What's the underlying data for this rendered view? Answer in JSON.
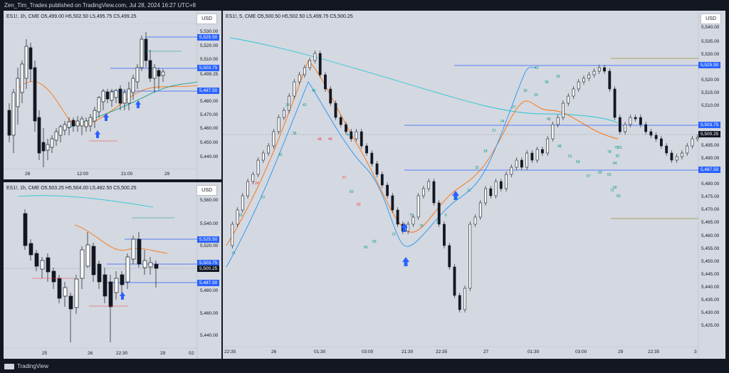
{
  "header": {
    "published": "Zen_Tim_Trades published on TradingView.com, Jul 28, 2024 16:27 UTC+8"
  },
  "footer": {
    "brand": "TradingView"
  },
  "colors": {
    "up": "#ffffff",
    "down": "#131722",
    "line_blue": "#2962ff",
    "ema_fast": "#ff6d00",
    "ema_mid": "#2196f3",
    "ema_slow": "#26c6da",
    "label_green": "#089981",
    "label_red": "#f23645"
  },
  "panel_tl": {
    "ohlc": "ES1!, 1h, CME  O5,499.00  H5,502.50  L5,495.75  C5,499.25",
    "currency": "USD",
    "y_ticks": [
      "5,530.00",
      "5,520.00",
      "5,510.00",
      "5,480.00",
      "5,470.00",
      "5,460.00",
      "5,450.00",
      "5,440.00"
    ],
    "x_ticks": [
      "26",
      "12:00",
      "21:00",
      "29"
    ],
    "tags": [
      {
        "text": "5,525.50",
        "style": "blue"
      },
      {
        "text": "5,503.75",
        "style": "blue"
      },
      {
        "text": "5,499.25",
        "style": "plain"
      },
      {
        "text": "5,487.50",
        "style": "blue"
      }
    ]
  },
  "panel_bl": {
    "ohlc": "ES1!, 1h, CME  O5,503.25  H5,504.00  L5,482.50  C5,500.25",
    "currency": "USD",
    "y_ticks": [
      "5,560.00",
      "5,540.00",
      "5,520.00",
      "5,480.00",
      "5,460.00",
      "5,440.00"
    ],
    "x_ticks": [
      "25",
      "26",
      "22:30",
      "29",
      "02:"
    ],
    "tags": [
      {
        "text": "5,525.50",
        "style": "blue"
      },
      {
        "text": "5,503.75",
        "style": "blue"
      },
      {
        "text": "5,500.25",
        "style": "dark"
      },
      {
        "text": "5,487.50",
        "style": "blue"
      }
    ]
  },
  "panel_main": {
    "ohlc": "ES1!, 5, CME  O5,500.50  H5,502.50  L5,499.75  C5,500.25",
    "currency": "USD",
    "y_ticks": [
      "5,540.00",
      "5,535.00",
      "5,530.00",
      "5,520.00",
      "5,515.00",
      "5,510.00",
      "5,495.00",
      "5,490.00",
      "5,480.00",
      "5,475.00",
      "5,470.00",
      "5,465.00",
      "5,460.00",
      "5,455.00",
      "5,450.00",
      "5,445.00",
      "5,440.00",
      "5,435.00",
      "5,430.00",
      "5,425.00"
    ],
    "x_ticks": [
      "22:35",
      "26",
      "01:30",
      "03:00",
      "21:30",
      "22:35",
      "27",
      "01:30",
      "03:00",
      "29",
      "22:35",
      "3"
    ],
    "tags": [
      {
        "text": "5,525.50",
        "style": "blue"
      },
      {
        "text": "5,503.75",
        "style": "blue"
      },
      {
        "text": "5,500.25",
        "style": "dark"
      },
      {
        "text": "5,487.50",
        "style": "blue"
      }
    ],
    "count_labels": [
      "15",
      "18",
      "27",
      "24",
      "33",
      "36",
      "39",
      "42",
      "45",
      "48",
      "48",
      "54",
      "57",
      "60",
      "63",
      "66",
      "69",
      "72",
      "75",
      "78",
      "3",
      "6",
      "9",
      "12",
      "15",
      "18",
      "21",
      "24",
      "27",
      "30",
      "33",
      "36",
      "39",
      "42",
      "45",
      "48",
      "51",
      "54",
      "57",
      "60",
      "63",
      "66",
      "69",
      "72",
      "75",
      "78",
      "81",
      "84",
      "87"
    ]
  }
}
